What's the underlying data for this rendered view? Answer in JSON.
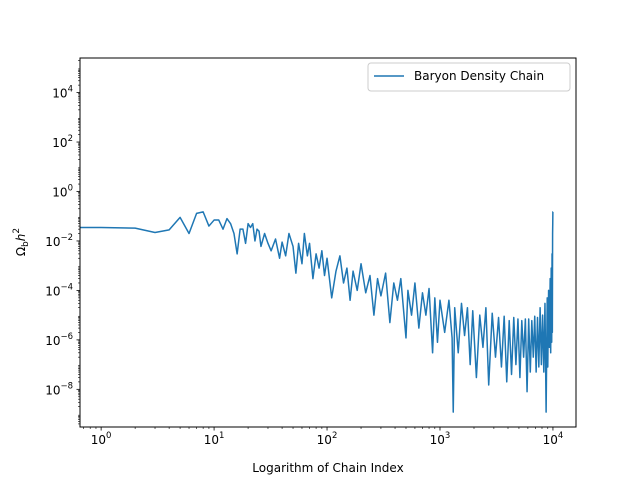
{
  "chart_data": {
    "type": "line",
    "title": "",
    "xlabel": "Logarithm of Chain Index",
    "ylabel_main": "Ω",
    "ylabel_sub": "b",
    "ylabel_tail": "h",
    "ylabel_sup": "2",
    "xscale": "log",
    "yscale": "log",
    "xlim": [
      0.65,
      16000
    ],
    "ylim": [
      3e-10,
      250000.0
    ],
    "grid": false,
    "legend_position": "upper right",
    "x_ticks": [
      {
        "value": 1,
        "base": "10",
        "exp": "0"
      },
      {
        "value": 10,
        "base": "10",
        "exp": "1"
      },
      {
        "value": 100,
        "base": "10",
        "exp": "2"
      },
      {
        "value": 1000,
        "base": "10",
        "exp": "3"
      },
      {
        "value": 10000,
        "base": "10",
        "exp": "4"
      }
    ],
    "y_ticks": [
      {
        "value": 1e-08,
        "base": "10",
        "exp": "−8"
      },
      {
        "value": 1e-06,
        "base": "10",
        "exp": "−6"
      },
      {
        "value": 0.0001,
        "base": "10",
        "exp": "−4"
      },
      {
        "value": 0.01,
        "base": "10",
        "exp": "−2"
      },
      {
        "value": 1,
        "base": "10",
        "exp": "0"
      },
      {
        "value": 100,
        "base": "10",
        "exp": "2"
      },
      {
        "value": 10000,
        "base": "10",
        "exp": "4"
      }
    ],
    "colors": {
      "series": "#1f77b4",
      "axis": "#000000",
      "background": "#ffffff"
    },
    "series": [
      {
        "name": "Baryon Density Chain",
        "points": [
          [
            0.65,
            0.035
          ],
          [
            1,
            0.035
          ],
          [
            2,
            0.033
          ],
          [
            3,
            0.022
          ],
          [
            4,
            0.028
          ],
          [
            5,
            0.09
          ],
          [
            6,
            0.02
          ],
          [
            7,
            0.13
          ],
          [
            8,
            0.15
          ],
          [
            9,
            0.04
          ],
          [
            10,
            0.07
          ],
          [
            11,
            0.07
          ],
          [
            12,
            0.03
          ],
          [
            13,
            0.08
          ],
          [
            14,
            0.05
          ],
          [
            15,
            0.02
          ],
          [
            16,
            0.003
          ],
          [
            17,
            0.03
          ],
          [
            18,
            0.03
          ],
          [
            19,
            0.008
          ],
          [
            20,
            0.05
          ],
          [
            21,
            0.035
          ],
          [
            22,
            0.05
          ],
          [
            23,
            0.01
          ],
          [
            24,
            0.03
          ],
          [
            25,
            0.025
          ],
          [
            26,
            0.006
          ],
          [
            28,
            0.02
          ],
          [
            30,
            0.008
          ],
          [
            32,
            0.004
          ],
          [
            35,
            0.012
          ],
          [
            38,
            0.002
          ],
          [
            40,
            0.009
          ],
          [
            43,
            0.0025
          ],
          [
            46,
            0.02
          ],
          [
            50,
            0.006
          ],
          [
            53,
            0.0005
          ],
          [
            56,
            0.008
          ],
          [
            60,
            0.0012
          ],
          [
            63,
            0.02
          ],
          [
            67,
            0.0025
          ],
          [
            70,
            0.008
          ],
          [
            75,
            0.0003
          ],
          [
            80,
            0.003
          ],
          [
            85,
            0.0008
          ],
          [
            90,
            0.004
          ],
          [
            95,
            0.0004
          ],
          [
            100,
            0.002
          ],
          [
            110,
            5e-05
          ],
          [
            120,
            0.0006
          ],
          [
            130,
            0.0025
          ],
          [
            140,
            0.0002
          ],
          [
            150,
            0.0008
          ],
          [
            160,
            4e-05
          ],
          [
            170,
            0.0006
          ],
          [
            185,
            0.0001
          ],
          [
            200,
            0.0012
          ],
          [
            220,
            8e-05
          ],
          [
            240,
            0.0004
          ],
          [
            260,
            1e-05
          ],
          [
            280,
            0.0003
          ],
          [
            300,
            6e-05
          ],
          [
            330,
            0.0005
          ],
          [
            360,
            5e-06
          ],
          [
            390,
            0.0002
          ],
          [
            420,
            4e-05
          ],
          [
            450,
            0.0003
          ],
          [
            500,
            1.2e-06
          ],
          [
            520,
            0.0001
          ],
          [
            560,
            1e-05
          ],
          [
            600,
            0.0002
          ],
          [
            650,
            3e-06
          ],
          [
            700,
            8e-05
          ],
          [
            750,
            1e-05
          ],
          [
            800,
            0.00012
          ],
          [
            860,
            3e-07
          ],
          [
            900,
            5e-05
          ],
          [
            950,
            8e-07
          ],
          [
            1000,
            4e-05
          ],
          [
            1100,
            2e-06
          ],
          [
            1200,
            4e-05
          ],
          [
            1280,
            1.2e-06
          ],
          [
            1310,
            1.2e-09
          ],
          [
            1350,
            2e-05
          ],
          [
            1450,
            3e-07
          ],
          [
            1550,
            3e-05
          ],
          [
            1650,
            1.5e-06
          ],
          [
            1750,
            2e-05
          ],
          [
            1850,
            1e-07
          ],
          [
            1950,
            1.5e-05
          ],
          [
            2100,
            3e-08
          ],
          [
            2250,
            1e-05
          ],
          [
            2400,
            5e-07
          ],
          [
            2550,
            2e-05
          ],
          [
            2700,
            1.5e-08
          ],
          [
            2900,
            1.2e-05
          ],
          [
            3100,
            2e-07
          ],
          [
            3300,
            8e-06
          ],
          [
            3500,
            8e-08
          ],
          [
            3700,
            9e-06
          ],
          [
            3900,
            2e-08
          ],
          [
            4100,
            6e-06
          ],
          [
            4300,
            4e-08
          ],
          [
            4500,
            8e-06
          ],
          [
            4700,
            1e-07
          ],
          [
            4900,
            7e-06
          ],
          [
            5100,
            3e-08
          ],
          [
            5300,
            6e-06
          ],
          [
            5500,
            2e-07
          ],
          [
            5700,
            7e-06
          ],
          [
            5900,
            8e-09
          ],
          [
            6100,
            7e-06
          ],
          [
            6300,
            5e-08
          ],
          [
            6500,
            6e-06
          ],
          [
            6700,
            2e-07
          ],
          [
            6900,
            9e-06
          ],
          [
            7100,
            5e-08
          ],
          [
            7300,
            8e-06
          ],
          [
            7500,
            8e-08
          ],
          [
            7700,
            2e-05
          ],
          [
            7900,
            1e-07
          ],
          [
            8100,
            1e-05
          ],
          [
            8300,
            5e-08
          ],
          [
            8500,
            3e-05
          ],
          [
            8700,
            1.2e-09
          ],
          [
            8900,
            5e-05
          ],
          [
            9000,
            8e-08
          ],
          [
            9150,
            0.0001
          ],
          [
            9300,
            5e-07
          ],
          [
            9450,
            0.0003
          ],
          [
            9550,
            3e-07
          ],
          [
            9650,
            0.0008
          ],
          [
            9750,
            8e-07
          ],
          [
            9820,
            0.003
          ],
          [
            9880,
            2e-06
          ],
          [
            9930,
            0.02
          ],
          [
            9960,
            0.05
          ],
          [
            9985,
            0.15
          ],
          [
            10000,
            0.15
          ]
        ]
      }
    ]
  }
}
